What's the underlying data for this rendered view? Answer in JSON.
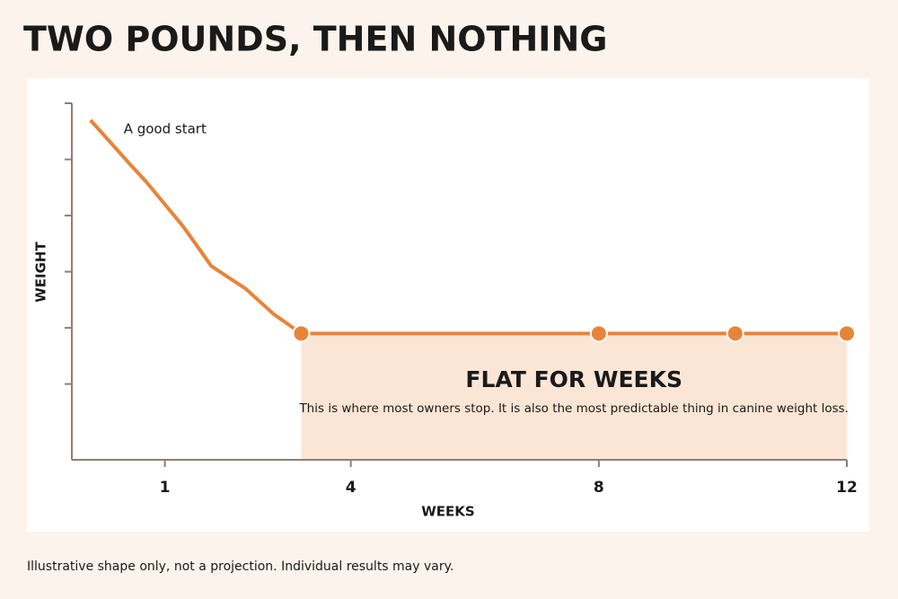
{
  "chart_data": {
    "type": "line",
    "title": "TWO POUNDS, THEN NOTHING",
    "x_label": "WEEKS",
    "y_label": "WEIGHT",
    "annotations": [
      "A good start",
      "FLAT FOR WEEKS",
      "This is where most owners stop. It is also the most predictable thing in canine weight loss."
    ],
    "footnote": "Illustrative shape only, not a projection. Individual results may vary.",
    "x": [
      -0.2,
      0.45,
      0.7,
      1.3,
      1.75,
      2.3,
      2.75,
      3.2,
      8,
      10.2,
      12
    ],
    "series": [
      {
        "color": "#e8833a",
        "values": [
          5.7,
          4.9,
          4.6,
          3.8,
          3.1,
          2.7,
          2.25,
          1.9,
          1.9,
          1.9,
          1.9
        ]
      }
    ],
    "xlim": [
      -0.5,
      12
    ],
    "xticks": [
      1,
      4,
      8,
      12
    ],
    "ylim": [
      -0.35,
      6
    ],
    "yticks": [
      1,
      2,
      3,
      4,
      5,
      6
    ]
  }
}
